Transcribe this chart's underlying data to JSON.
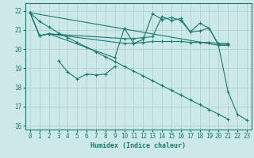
{
  "xlabel": "Humidex (Indice chaleur)",
  "x_values": [
    0,
    1,
    2,
    3,
    4,
    5,
    6,
    7,
    8,
    9,
    10,
    11,
    12,
    13,
    14,
    15,
    16,
    17,
    18,
    19,
    20,
    21,
    22,
    23
  ],
  "line1": [
    21.9,
    20.7,
    20.8,
    null,
    null,
    null,
    null,
    null,
    null,
    null,
    20.3,
    20.3,
    20.35,
    20.4,
    20.4,
    20.4,
    20.4,
    20.35,
    20.35,
    20.35,
    20.3,
    20.3,
    null,
    null
  ],
  "line2": [
    21.9,
    20.7,
    20.8,
    null,
    null,
    null,
    null,
    null,
    null,
    null,
    20.55,
    20.55,
    20.6,
    20.65,
    21.7,
    21.5,
    21.6,
    20.9,
    20.95,
    21.1,
    20.2,
    20.2,
    null,
    null
  ],
  "line3": [
    21.9,
    20.7,
    20.8,
    null,
    null,
    null,
    null,
    null,
    null,
    19.55,
    21.1,
    20.3,
    20.5,
    21.85,
    21.55,
    21.65,
    21.5,
    20.9,
    21.35,
    21.1,
    20.25,
    20.25,
    null,
    null
  ],
  "line_zigzag": [
    null,
    null,
    null,
    19.4,
    18.8,
    18.45,
    18.7,
    18.65,
    18.7,
    19.1,
    null,
    null,
    null,
    null,
    null,
    null,
    null,
    null,
    null,
    null,
    null,
    null,
    null,
    null
  ],
  "line_main": [
    21.9,
    null,
    null,
    null,
    null,
    null,
    null,
    null,
    null,
    null,
    null,
    null,
    null,
    null,
    null,
    null,
    null,
    null,
    null,
    null,
    20.2,
    17.8,
    16.6,
    16.3
  ],
  "line_diag": [
    21.9,
    21.45,
    21.15,
    20.85,
    20.6,
    20.35,
    20.1,
    19.85,
    19.6,
    19.35,
    19.1,
    18.85,
    18.6,
    18.35,
    18.1,
    17.85,
    17.6,
    17.35,
    17.1,
    16.85,
    16.6,
    16.35,
    null,
    null
  ],
  "bg_color": "#cce8e8",
  "grid_color": "#aacccc",
  "line_color": "#1a7a6e",
  "ylim": [
    15.8,
    22.4
  ],
  "yticks": [
    16,
    17,
    18,
    19,
    20,
    21,
    22
  ],
  "xticks": [
    0,
    1,
    2,
    3,
    4,
    5,
    6,
    7,
    8,
    9,
    10,
    11,
    12,
    13,
    14,
    15,
    16,
    17,
    18,
    19,
    20,
    21,
    22,
    23
  ],
  "tick_fontsize": 5.5,
  "xlabel_fontsize": 6.0
}
